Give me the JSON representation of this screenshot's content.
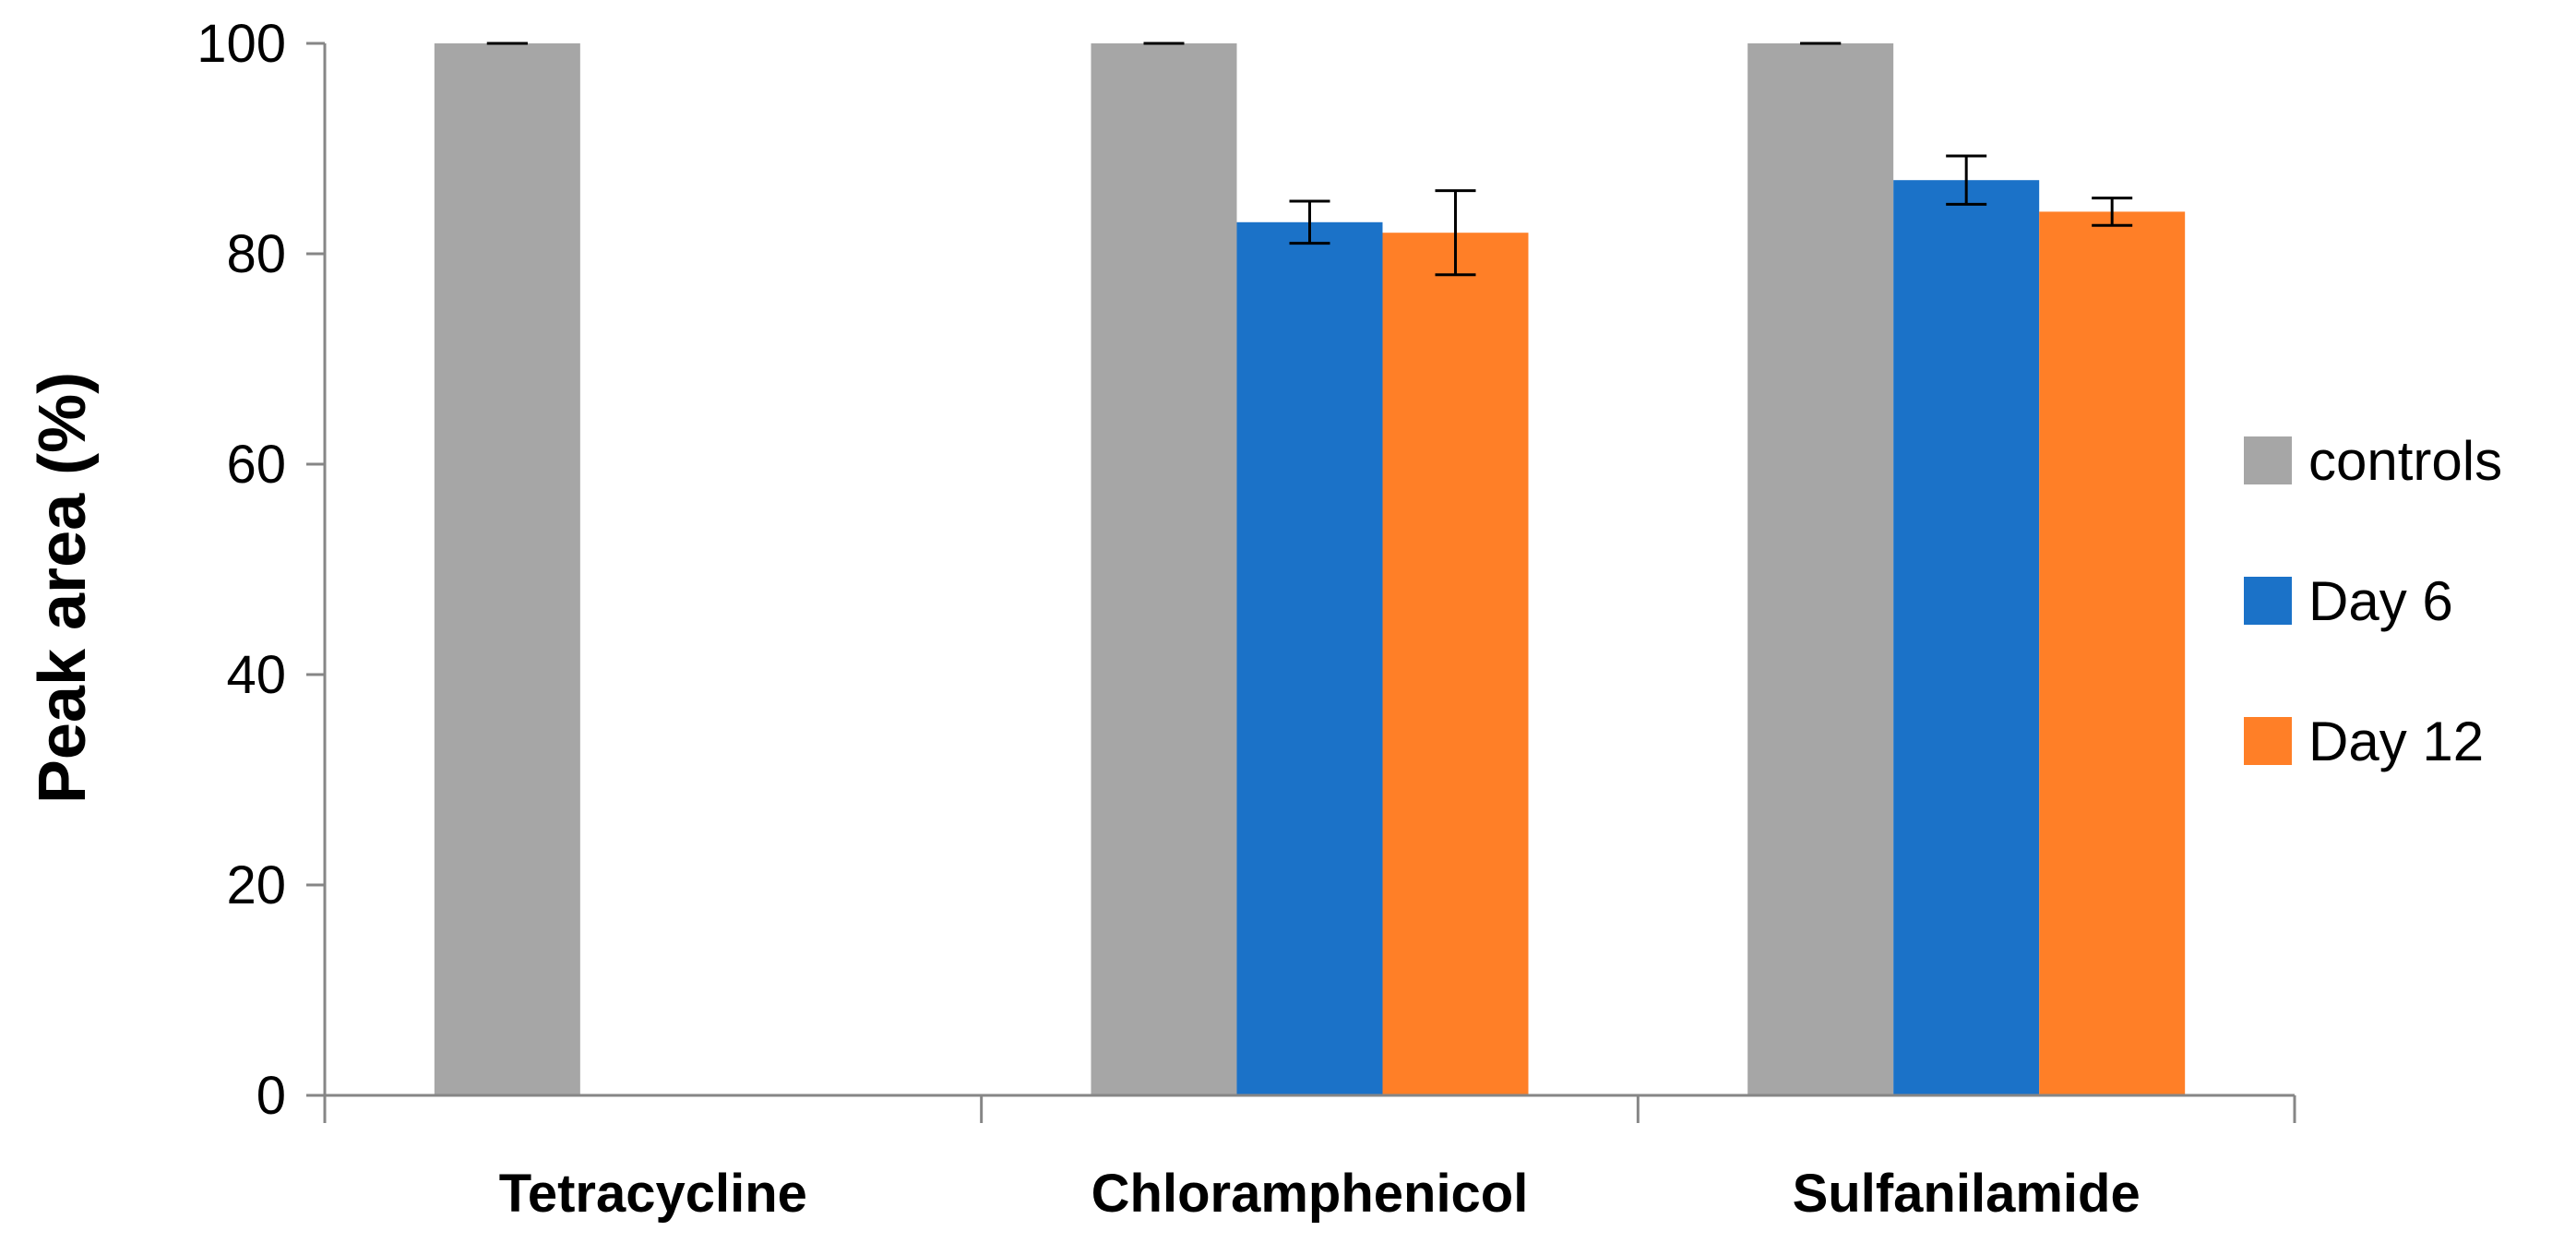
{
  "chart_data": {
    "type": "bar",
    "title": "",
    "xlabel": "",
    "ylabel": "Peak area (%)",
    "ylim": [
      0,
      100
    ],
    "yticks": [
      0,
      20,
      40,
      60,
      80,
      100
    ],
    "ytick_labels": [
      "0",
      "20",
      "40",
      "60",
      "80",
      "100"
    ],
    "grid": false,
    "legend_position": "right",
    "categories": [
      "Tetracycline",
      "Chloramphenicol",
      "Sulfanilamide"
    ],
    "series": [
      {
        "name": "controls",
        "color": "#A6A6A6",
        "values": [
          100,
          100,
          100
        ],
        "errors": [
          0,
          0,
          0
        ]
      },
      {
        "name": "Day 6",
        "color": "#1B72C8",
        "values": [
          0,
          83,
          87
        ],
        "errors": [
          0,
          2,
          2.3
        ]
      },
      {
        "name": "Day 12",
        "color": "#FF7F27",
        "values": [
          0,
          82,
          84
        ],
        "errors": [
          0,
          4,
          1.3
        ]
      }
    ]
  }
}
